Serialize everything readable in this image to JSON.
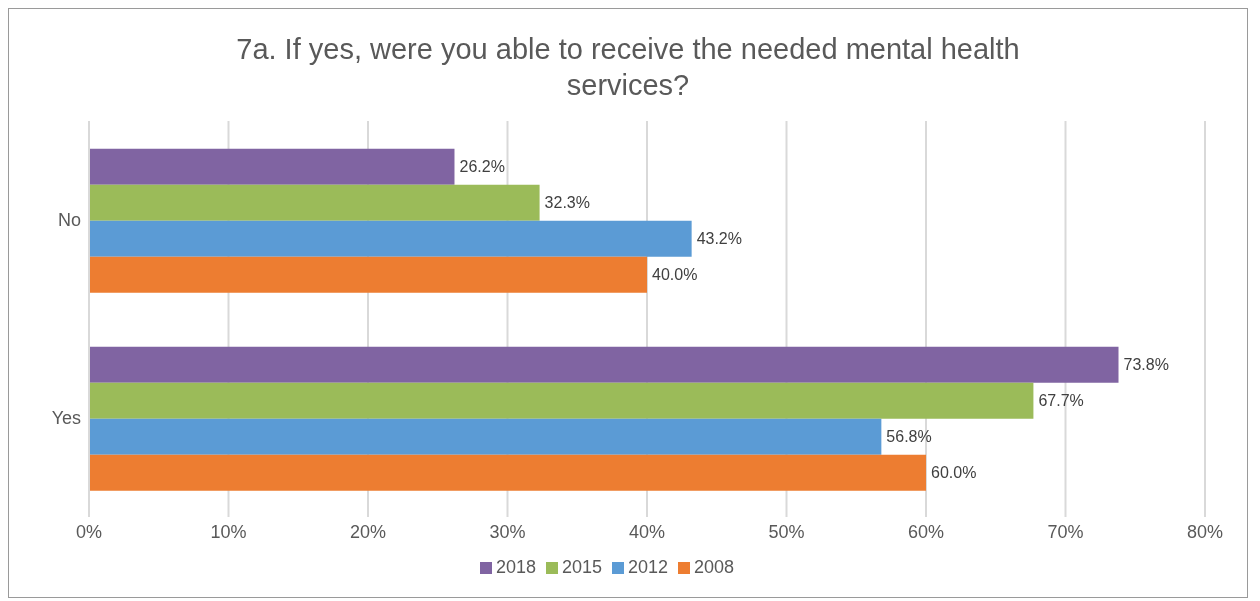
{
  "chart_data": {
    "type": "bar",
    "orientation": "horizontal",
    "title": "7a. If yes, were you able to receive the needed mental health services?",
    "categories": [
      "No",
      "Yes"
    ],
    "series": [
      {
        "name": "2018",
        "color": "#8064a2",
        "values": [
          26.2,
          73.8
        ],
        "value_labels": [
          "26.2%",
          "73.8%"
        ]
      },
      {
        "name": "2015",
        "color": "#9bbb59",
        "values": [
          32.3,
          67.7
        ],
        "value_labels": [
          "32.3%",
          "67.7%"
        ]
      },
      {
        "name": "2012",
        "color": "#5b9bd5",
        "values": [
          43.2,
          56.8
        ],
        "value_labels": [
          "43.2%",
          "56.8%"
        ]
      },
      {
        "name": "2008",
        "color": "#ed7d31",
        "values": [
          40.0,
          60.0
        ],
        "value_labels": [
          "40.0%",
          "60.0%"
        ]
      }
    ],
    "xlim": [
      0,
      80
    ],
    "xticks": [
      {
        "value": 0,
        "label": "0%"
      },
      {
        "value": 10,
        "label": "10%"
      },
      {
        "value": 20,
        "label": "20%"
      },
      {
        "value": 30,
        "label": "30%"
      },
      {
        "value": 40,
        "label": "40%"
      },
      {
        "value": 50,
        "label": "50%"
      },
      {
        "value": 60,
        "label": "60%"
      },
      {
        "value": 70,
        "label": "70%"
      },
      {
        "value": 80,
        "label": "80%"
      }
    ],
    "grid": "x",
    "legend": "bottom"
  }
}
